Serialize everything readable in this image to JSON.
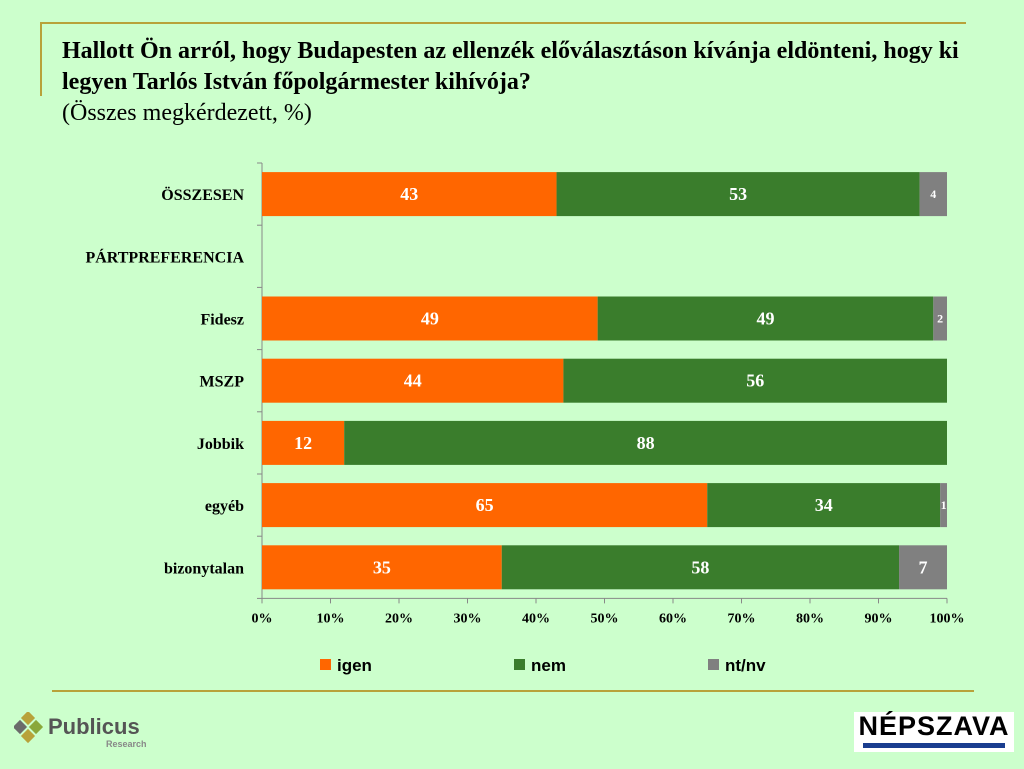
{
  "title": "Hallott Ön arról, hogy Budapesten az ellenzék előválasztáson kívánja eldönteni, hogy ki legyen Tarlós István főpolgármester kihívója?",
  "subtitle": "(Összes megkérdezett, %)",
  "chart_data": {
    "type": "bar",
    "orientation": "horizontal",
    "stacked": "percent",
    "categories": [
      "ÖSSZESEN",
      "PÁRTPREFERENCIA",
      "Fidesz",
      "MSZP",
      "Jobbik",
      "egyéb",
      "bizonytalan"
    ],
    "series": [
      {
        "name": "igen",
        "color": "#ff6600",
        "values": [
          43,
          null,
          49,
          44,
          12,
          65,
          35
        ]
      },
      {
        "name": "nem",
        "color": "#3a7d2c",
        "values": [
          53,
          null,
          49,
          56,
          88,
          34,
          58
        ]
      },
      {
        "name": "nt/nv",
        "color": "#808080",
        "values": [
          4,
          null,
          2,
          0,
          0,
          1,
          7
        ]
      }
    ],
    "x_ticks": [
      "0%",
      "10%",
      "20%",
      "30%",
      "40%",
      "50%",
      "60%",
      "70%",
      "80%",
      "90%",
      "100%"
    ],
    "xlim": [
      0,
      100
    ],
    "legend": [
      "igen",
      "nem",
      "nt/nv"
    ],
    "legend_position": "bottom"
  },
  "logos": {
    "left_name": "Publicus",
    "left_sub": "Research",
    "right_name": "NÉPSZAVA"
  }
}
